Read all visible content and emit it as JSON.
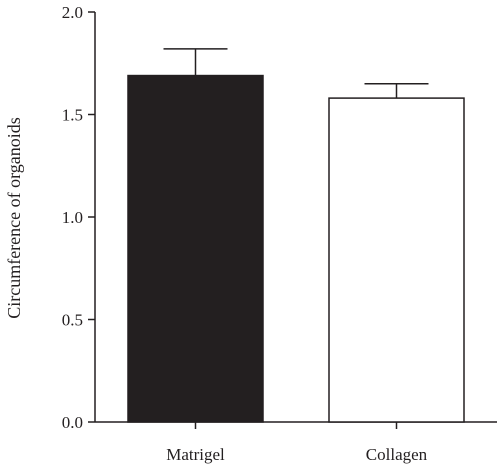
{
  "chart_data": {
    "type": "bar",
    "categories": [
      "Matrigel",
      "Collagen"
    ],
    "values": [
      1.69,
      1.58
    ],
    "errors": [
      0.13,
      0.07
    ],
    "bar_colors": [
      "#231f20",
      "#ffffff"
    ],
    "bar_stroke": "#231f20",
    "title": "",
    "xlabel": "",
    "ylabel": "Circumference of organoids",
    "ylim": [
      0,
      2.0
    ],
    "yticks": [
      0.0,
      0.5,
      1.0,
      1.5,
      2.0
    ],
    "ytick_labels": [
      "0.0",
      "0.5",
      "1.0",
      "1.5",
      "2.0"
    ],
    "grid": false,
    "legend": "none"
  }
}
